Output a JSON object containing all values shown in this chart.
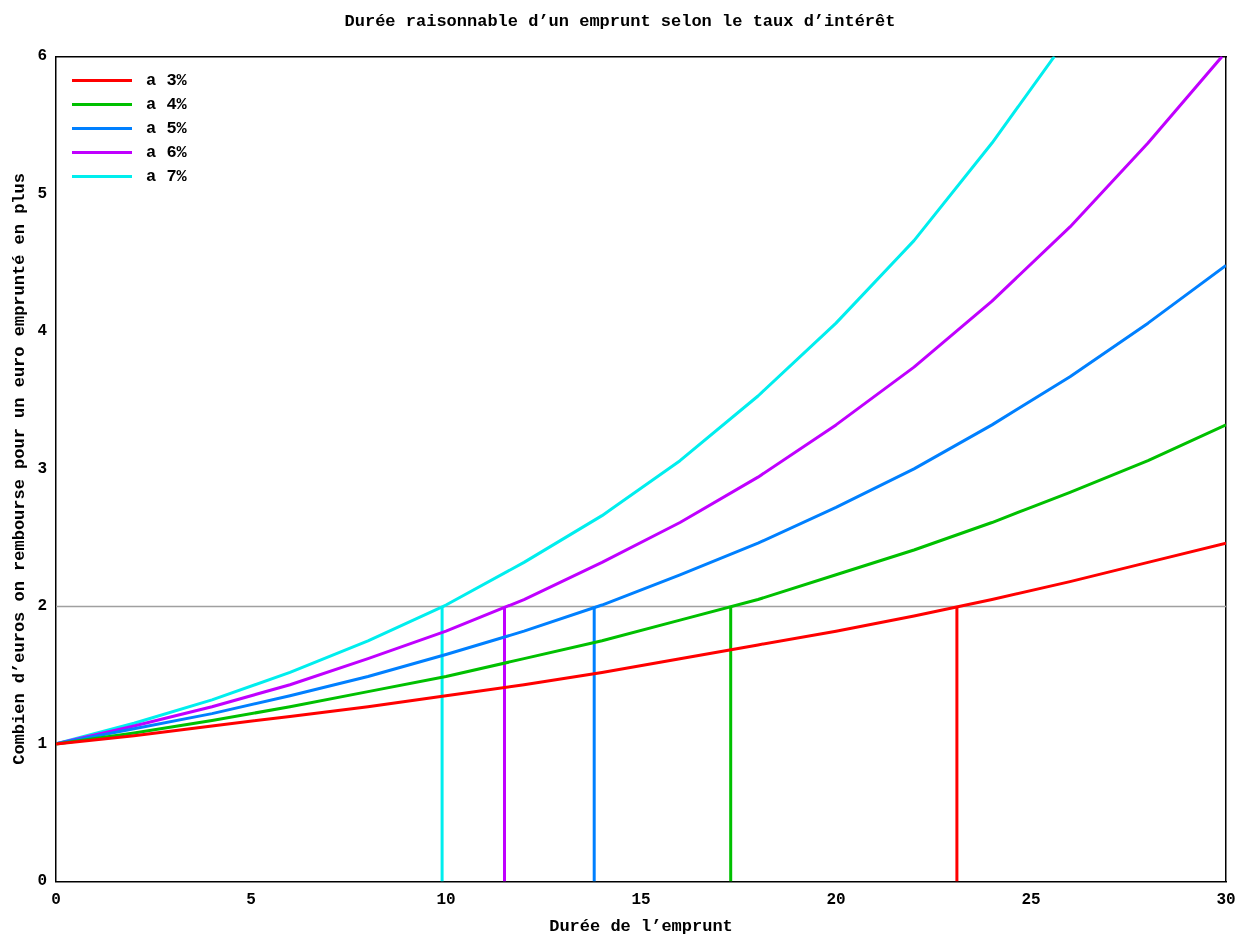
{
  "chart_data": {
    "type": "line",
    "title": "Durée raisonnable d’un emprunt selon le taux d’intérêt",
    "xlabel": "Durée de l’emprunt",
    "ylabel": "Combien d’euros on rembourse pour un euro emprunté en plus",
    "x": [
      0,
      2,
      4,
      6,
      8,
      10,
      12,
      14,
      16,
      18,
      20,
      22,
      24,
      26,
      28,
      30
    ],
    "series": [
      {
        "name": "a 3%",
        "color": "#ff0000",
        "values": [
          1,
          1.06,
          1.13,
          1.2,
          1.27,
          1.35,
          1.43,
          1.52,
          1.62,
          1.72,
          1.82,
          1.93,
          2.05,
          2.18,
          2.32,
          2.46
        ]
      },
      {
        "name": "a 4%",
        "color": "#00c000",
        "values": [
          1,
          1.08,
          1.17,
          1.27,
          1.38,
          1.49,
          1.62,
          1.75,
          1.9,
          2.05,
          2.23,
          2.41,
          2.61,
          2.83,
          3.06,
          3.32
        ]
      },
      {
        "name": "a 5%",
        "color": "#0080ff",
        "values": [
          1,
          1.11,
          1.22,
          1.35,
          1.49,
          1.65,
          1.82,
          2.01,
          2.23,
          2.46,
          2.72,
          3,
          3.32,
          3.67,
          4.06,
          4.48
        ]
      },
      {
        "name": "a 6%",
        "color": "#c000ff",
        "x": [
          0,
          2,
          4,
          6,
          8,
          10,
          12,
          14,
          16,
          18,
          20,
          22,
          24,
          26,
          28,
          29.9
        ],
        "values": [
          1,
          1.13,
          1.27,
          1.43,
          1.62,
          1.82,
          2.05,
          2.32,
          2.61,
          2.94,
          3.32,
          3.74,
          4.22,
          4.76,
          5.37,
          6
        ]
      },
      {
        "name": "a 7%",
        "color": "#00eeee",
        "x": [
          0,
          2,
          4,
          6,
          8,
          10,
          12,
          14,
          16,
          18,
          20,
          22,
          24,
          25.6
        ],
        "values": [
          1,
          1.15,
          1.32,
          1.52,
          1.75,
          2.01,
          2.32,
          2.66,
          3.06,
          3.53,
          4.06,
          4.66,
          5.37,
          6
        ]
      },
      {
        "color": "#ff0000",
        "x": [
          23.1,
          23.1
        ],
        "values": [
          0,
          2
        ]
      },
      {
        "color": "#00c000",
        "x": [
          17.3,
          17.3
        ],
        "values": [
          0,
          2
        ]
      },
      {
        "color": "#0080ff",
        "x": [
          13.8,
          13.8
        ],
        "values": [
          0,
          2
        ]
      },
      {
        "color": "#c000ff",
        "x": [
          11.5,
          11.5
        ],
        "values": [
          0,
          2
        ]
      },
      {
        "color": "#00eeee",
        "x": [
          9.9,
          9.9
        ],
        "values": [
          0,
          2
        ]
      }
    ],
    "xlim": [
      0,
      30
    ],
    "xticks": [
      0,
      5,
      10,
      15,
      20,
      25,
      30
    ],
    "ylim": [
      0,
      6
    ],
    "yticks": [
      0,
      1,
      2,
      3,
      4,
      5,
      6
    ],
    "ref_lines": [
      {
        "axis": "y",
        "value": 2,
        "color": "#a0a0a0"
      }
    ],
    "grid": false,
    "legend": "top left",
    "marker": "none",
    "line_style": "solid"
  }
}
